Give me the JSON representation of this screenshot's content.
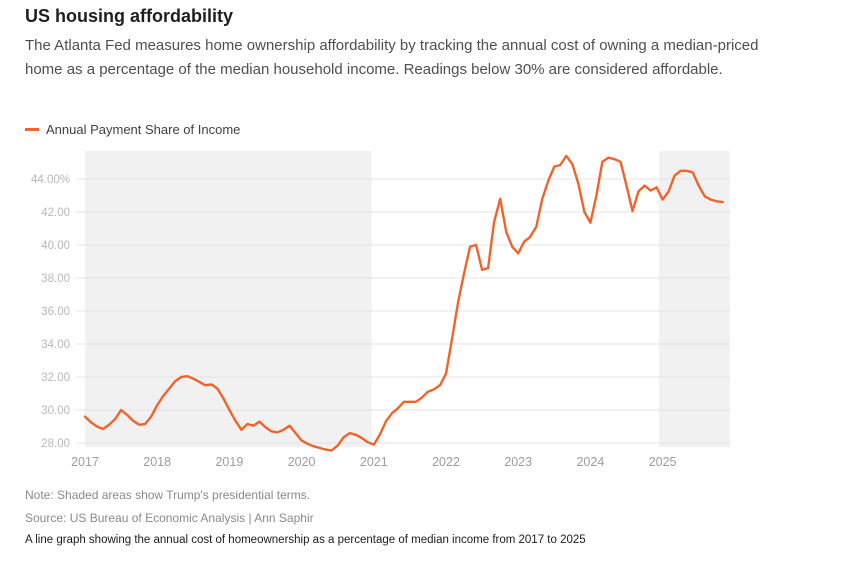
{
  "header": {
    "title": "US housing affordability",
    "description": "The Atlanta Fed measures home ownership affordability by tracking the annual cost of owning a median-priced home as a percentage of the median household income. Readings below 30% are considered affordable."
  },
  "legend": {
    "label": "Annual Payment Share of Income",
    "color": "#F0642B"
  },
  "chart_data": {
    "type": "line",
    "title": "US housing affordability",
    "xlabel": "",
    "ylabel": "Annual Payment Share of Income (%)",
    "grid": true,
    "legend_position": "top-left",
    "xlim": [
      2016.88,
      2025.95
    ],
    "ylim": [
      27.6,
      45.7
    ],
    "x_ticks": [
      {
        "value": 2017,
        "label": "2017"
      },
      {
        "value": 2018,
        "label": "2018"
      },
      {
        "value": 2019,
        "label": "2019"
      },
      {
        "value": 2020,
        "label": "2020"
      },
      {
        "value": 2021,
        "label": "2021"
      },
      {
        "value": 2022,
        "label": "2022"
      },
      {
        "value": 2023,
        "label": "2023"
      },
      {
        "value": 2024,
        "label": "2024"
      },
      {
        "value": 2025,
        "label": "2025"
      }
    ],
    "y_ticks": [
      {
        "value": 44,
        "label": "44.00%"
      },
      {
        "value": 42,
        "label": "42.00"
      },
      {
        "value": 40,
        "label": "40.00"
      },
      {
        "value": 38,
        "label": "38.00"
      },
      {
        "value": 36,
        "label": "36.00"
      },
      {
        "value": 34,
        "label": "34.00"
      },
      {
        "value": 32,
        "label": "32.00"
      },
      {
        "value": 30,
        "label": "30.00"
      },
      {
        "value": 28,
        "label": "28.00"
      }
    ],
    "shaded_regions": [
      {
        "from": 2017.0,
        "to": 2020.97,
        "label": "Trump presidential term 1"
      },
      {
        "from": 2024.95,
        "to": 2025.93,
        "label": "Trump presidential term 2"
      }
    ],
    "series": [
      {
        "name": "Annual Payment Share of Income",
        "color": "#F0642B",
        "start_year": 2017,
        "frequency": "monthly",
        "values": [
          29.6,
          29.25,
          29.0,
          28.85,
          29.1,
          29.45,
          30.0,
          29.7,
          29.35,
          29.1,
          29.15,
          29.6,
          30.3,
          30.85,
          31.3,
          31.75,
          32.0,
          32.05,
          31.9,
          31.7,
          31.5,
          31.55,
          31.3,
          30.7,
          30.0,
          29.35,
          28.8,
          29.15,
          29.05,
          29.3,
          28.95,
          28.7,
          28.65,
          28.8,
          29.05,
          28.6,
          28.15,
          27.95,
          27.8,
          27.7,
          27.6,
          27.55,
          27.85,
          28.35,
          28.6,
          28.5,
          28.3,
          28.05,
          27.9,
          28.5,
          29.3,
          29.8,
          30.1,
          30.5,
          30.5,
          30.5,
          30.75,
          31.1,
          31.25,
          31.5,
          32.2,
          34.3,
          36.5,
          38.3,
          39.9,
          40.0,
          38.5,
          38.6,
          41.4,
          42.8,
          40.8,
          39.9,
          39.5,
          40.2,
          40.5,
          41.1,
          42.8,
          43.9,
          44.75,
          44.85,
          45.4,
          44.9,
          43.7,
          42.0,
          41.35,
          43.0,
          45.05,
          45.3,
          45.2,
          45.05,
          43.6,
          42.05,
          43.25,
          43.6,
          43.3,
          43.5,
          42.75,
          43.25,
          44.2,
          44.5,
          44.5,
          44.4,
          43.6,
          42.95,
          42.75,
          42.65,
          42.6
        ]
      }
    ],
    "colors": {
      "line": "#F0642B",
      "shading": "#F1F1F1",
      "grid": "#E4E4E4",
      "y_tick_label": "#B8B8B8",
      "x_tick_label": "#9D9D9D"
    }
  },
  "footer": {
    "note": "Note: Shaded areas show Trump's presidential terms.",
    "source": "Source: US Bureau of Economic Analysis | Ann Saphir",
    "caption": "A line graph showing the annual cost of homeownership as a percentage of median income from 2017 to 2025"
  }
}
